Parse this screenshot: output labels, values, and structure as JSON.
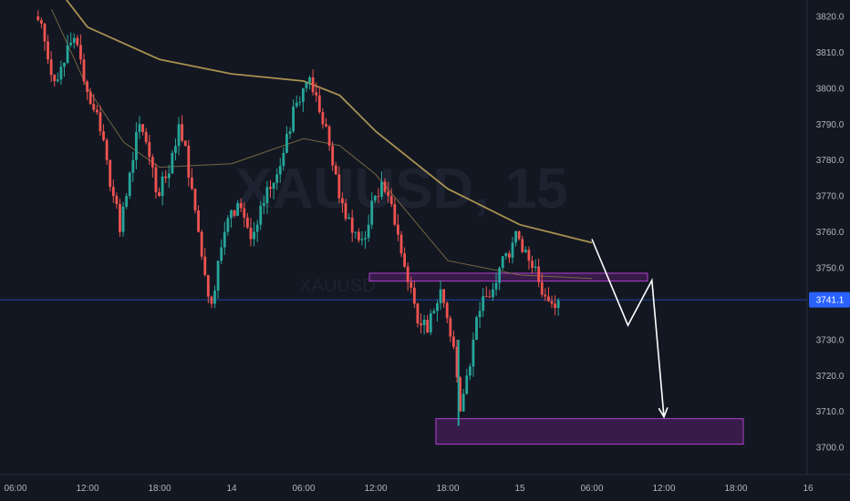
{
  "chart_data": {
    "type": "candlestick",
    "watermark": "XAUUSD, 15",
    "watermark_sub": "XAUUSD",
    "y_axis": {
      "ticks": [
        "3820.0",
        "3810.0",
        "3800.0",
        "3790.0",
        "3780.0",
        "3770.0",
        "3760.0",
        "3750.0",
        "3730.0",
        "3720.0",
        "3710.0",
        "3700.0"
      ],
      "tick_values": [
        3820,
        3810,
        3800,
        3790,
        3780,
        3770,
        3760,
        3750,
        3730,
        3720,
        3710,
        3700
      ],
      "ylim": [
        3694,
        3824
      ]
    },
    "x_axis": {
      "ticks": [
        "06:00",
        "12:00",
        "18:00",
        "14",
        "06:00",
        "12:00",
        "18:00",
        "15",
        "06:00",
        "12:00",
        "18:00",
        "16"
      ]
    },
    "current_price": {
      "label": "3741.1",
      "value": 3741.1
    },
    "zones": [
      {
        "name": "resistance-zone",
        "y_from": 3746.3,
        "y_to": 3748.5
      },
      {
        "name": "target-zone",
        "y_from": 3700.9,
        "y_to": 3708.0
      }
    ],
    "projection_path": [
      {
        "t": "15 06:00",
        "price": 3758.0
      },
      {
        "t": "15 09:00",
        "price": 3734.0
      },
      {
        "t": "15 11:00",
        "price": 3746.5
      },
      {
        "t": "15 12:00",
        "price": 3708.5
      }
    ],
    "ma_long": [
      {
        "t": "13 09:00",
        "price": 3830
      },
      {
        "t": "13 12:00",
        "price": 3817
      },
      {
        "t": "13 18:00",
        "price": 3808
      },
      {
        "t": "14 00:00",
        "price": 3804
      },
      {
        "t": "14 06:00",
        "price": 3802
      },
      {
        "t": "14 09:00",
        "price": 3798
      },
      {
        "t": "14 12:00",
        "price": 3788
      },
      {
        "t": "14 18:00",
        "price": 3772
      },
      {
        "t": "15 00:00",
        "price": 3762
      },
      {
        "t": "15 06:00",
        "price": 3757
      }
    ],
    "ma_short": [
      {
        "t": "13 09:00",
        "price": 3822
      },
      {
        "t": "13 12:00",
        "price": 3800
      },
      {
        "t": "13 15:00",
        "price": 3785
      },
      {
        "t": "13 18:00",
        "price": 3778
      },
      {
        "t": "14 00:00",
        "price": 3779
      },
      {
        "t": "14 06:00",
        "price": 3786
      },
      {
        "t": "14 09:00",
        "price": 3784
      },
      {
        "t": "14 12:00",
        "price": 3776
      },
      {
        "t": "14 18:00",
        "price": 3752
      },
      {
        "t": "15 00:00",
        "price": 3748
      },
      {
        "t": "15 06:00",
        "price": 3747
      }
    ],
    "closes": [
      3818,
      3808,
      3802,
      3806,
      3812,
      3814,
      3808,
      3799,
      3794,
      3788,
      3780,
      3770,
      3760,
      3770,
      3780,
      3790,
      3785,
      3778,
      3770,
      3775,
      3782,
      3790,
      3784,
      3772,
      3760,
      3748,
      3740,
      3752,
      3760,
      3766,
      3768,
      3764,
      3758,
      3762,
      3768,
      3772,
      3776,
      3782,
      3788,
      3796,
      3800,
      3803,
      3798,
      3790,
      3784,
      3776,
      3768,
      3764,
      3760,
      3758,
      3762,
      3770,
      3774,
      3770,
      3762,
      3754,
      3746,
      3740,
      3734,
      3732,
      3738,
      3744,
      3736,
      3728,
      3710,
      3720,
      3730,
      3738,
      3742,
      3744,
      3750,
      3754,
      3757,
      3758,
      3755,
      3750,
      3746,
      3742,
      3740,
      3741
    ]
  }
}
